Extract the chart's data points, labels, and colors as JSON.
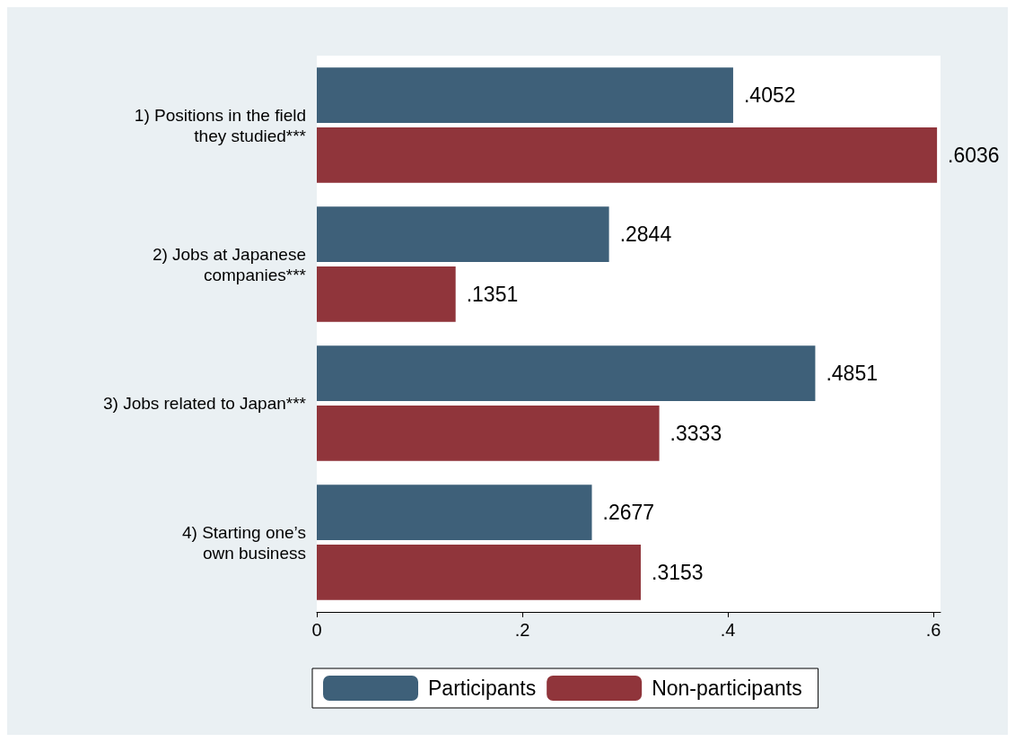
{
  "chart_data": {
    "type": "bar",
    "orientation": "horizontal",
    "categories": [
      "1) Positions in the field\nthey studied***",
      "2) Jobs at Japanese\ncompanies***",
      "3) Jobs related to Japan***",
      "4) Starting one’s\nown business"
    ],
    "series": [
      {
        "name": "Participants",
        "color": "#3e6079",
        "values": [
          0.4052,
          0.2844,
          0.4851,
          0.2677
        ],
        "value_labels": [
          ".4052",
          ".2844",
          ".4851",
          ".2677"
        ]
      },
      {
        "name": "Non-participants",
        "color": "#90353b",
        "values": [
          0.6036,
          0.1351,
          0.3333,
          0.3153
        ],
        "value_labels": [
          ".6036",
          ".1351",
          ".3333",
          ".3153"
        ]
      }
    ],
    "xlim": [
      0,
      0.607
    ],
    "xticks": [
      {
        "value": 0,
        "label": "0"
      },
      {
        "value": 0.2,
        "label": ".2"
      },
      {
        "value": 0.4,
        "label": ".4"
      },
      {
        "value": 0.6,
        "label": ".6"
      }
    ],
    "grid": false,
    "legend": "bottom"
  }
}
